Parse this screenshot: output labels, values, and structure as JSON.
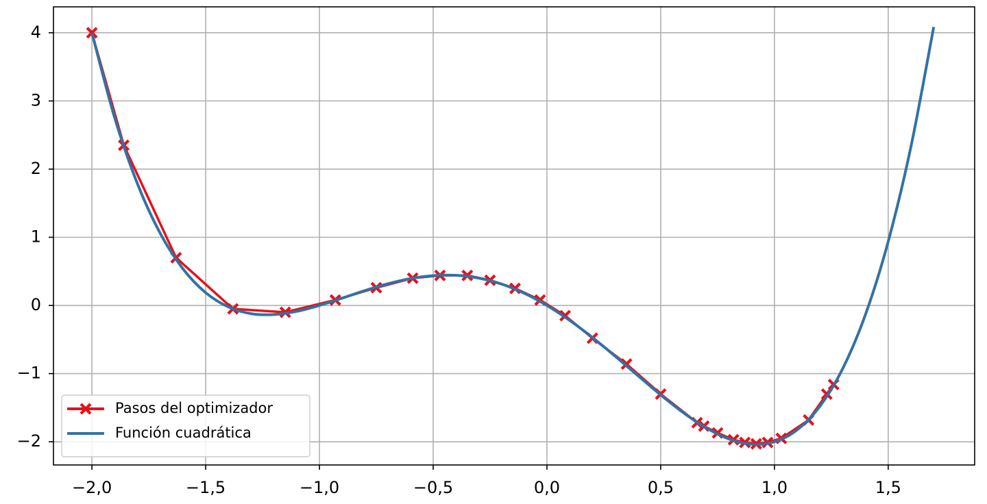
{
  "chart_data": {
    "type": "line",
    "xlim": [
      -2.169,
      1.88
    ],
    "ylim": [
      -2.34,
      4.38
    ],
    "xticks": [
      {
        "value": -2.0,
        "label": "−2,0"
      },
      {
        "value": -1.5,
        "label": "−1,5"
      },
      {
        "value": -1.0,
        "label": "−1,0"
      },
      {
        "value": -0.5,
        "label": "−0,5"
      },
      {
        "value": 0.0,
        "label": "0,0"
      },
      {
        "value": 0.5,
        "label": "0,5"
      },
      {
        "value": 1.0,
        "label": "1,0"
      },
      {
        "value": 1.5,
        "label": "1,5"
      }
    ],
    "yticks": [
      {
        "value": -2,
        "label": "−2"
      },
      {
        "value": -1,
        "label": "−1"
      },
      0,
      1,
      2,
      3,
      4
    ],
    "grid": true,
    "legend": "lower left",
    "series": [
      {
        "name": "Pasos del optimizador",
        "color": "#e8101a",
        "marker": "X",
        "x": [
          -2.0,
          -1.86,
          -1.63,
          -1.38,
          -1.15,
          -0.93,
          -0.75,
          -0.59,
          -0.47,
          -0.35,
          -0.25,
          -0.14,
          -0.03,
          0.08,
          0.2,
          0.35,
          0.5,
          0.66,
          0.69,
          0.75,
          0.82,
          0.87,
          0.92,
          0.97,
          1.03,
          1.15,
          1.23,
          1.26
        ],
        "values": [
          4.0,
          2.35,
          0.7,
          -0.05,
          -0.1,
          0.08,
          0.26,
          0.4,
          0.44,
          0.44,
          0.37,
          0.25,
          0.08,
          -0.15,
          -0.48,
          -0.86,
          -1.3,
          -1.72,
          -1.77,
          -1.87,
          -1.97,
          -2.01,
          -2.03,
          -2.01,
          -1.95,
          -1.68,
          -1.3,
          -1.16
        ]
      },
      {
        "name": "Función cuadrática",
        "color": "#3272a4",
        "x": [
          -2.0,
          -1.9,
          -1.8,
          -1.7,
          -1.6,
          -1.5,
          -1.4,
          -1.3,
          -1.2,
          -1.1,
          -1.0,
          -0.9,
          -0.8,
          -0.7,
          -0.6,
          -0.5,
          -0.4,
          -0.3,
          -0.2,
          -0.1,
          0.0,
          0.1,
          0.2,
          0.3,
          0.4,
          0.5,
          0.6,
          0.7,
          0.8,
          0.9,
          1.0,
          1.1,
          1.2,
          1.3,
          1.4,
          1.5,
          1.6,
          1.7
        ],
        "values": [
          4.0,
          2.753,
          1.786,
          1.059,
          0.538,
          0.1875,
          -0.022,
          -0.121,
          -0.134,
          -0.087,
          0.0,
          0.107,
          0.218,
          0.317,
          0.394,
          0.4375,
          0.442,
          0.401,
          0.314,
          0.179,
          0.0,
          -0.219,
          -0.47,
          -0.745,
          -1.03,
          -1.3125,
          -1.574,
          -1.797,
          -1.958,
          -2.035,
          -2.0,
          -1.825,
          -1.478,
          -0.927,
          -0.134,
          0.9375,
          2.33,
          4.085
        ]
      }
    ]
  }
}
